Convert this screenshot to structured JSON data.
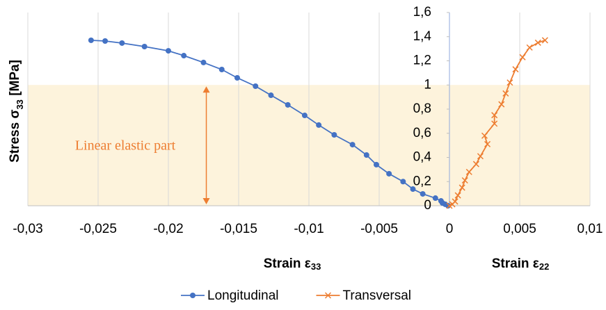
{
  "chart_data": {
    "type": "line",
    "y_label": [
      "Stress σ",
      "33",
      " [MPa]"
    ],
    "x_label_left": [
      "Strain ε",
      "33"
    ],
    "x_label_right": [
      "Strain ε",
      "22"
    ],
    "annotation": {
      "text": "Linear elastic part",
      "y_range": [
        0,
        1
      ],
      "color": "#ed7d31"
    },
    "highlight_color": "#fdf3dc",
    "xlim": [
      -0.03,
      0.01
    ],
    "ylim": [
      0,
      1.6
    ],
    "xticks": [
      {
        "value": -0.03,
        "label": "-0,03"
      },
      {
        "value": -0.025,
        "label": "-0,025"
      },
      {
        "value": -0.02,
        "label": "-0,02"
      },
      {
        "value": -0.015,
        "label": "-0,015"
      },
      {
        "value": -0.01,
        "label": "-0,01"
      },
      {
        "value": -0.005,
        "label": "-0,005"
      },
      0,
      {
        "value": 0.005,
        "label": "0,005"
      },
      {
        "value": 0.01,
        "label": "0,01"
      }
    ],
    "yticks": [
      0,
      {
        "value": 0.2,
        "label": "0,2"
      },
      {
        "value": 0.4,
        "label": "0,4"
      },
      {
        "value": 0.6,
        "label": "0,6"
      },
      {
        "value": 0.8,
        "label": "0,8"
      },
      1,
      {
        "value": 1.2,
        "label": "1,2"
      },
      {
        "value": 1.4,
        "label": "1,4"
      },
      {
        "value": 1.6,
        "label": "1,6"
      }
    ],
    "grid": true,
    "legend_position": "bottom",
    "series": [
      {
        "name": "Longitudinal",
        "color": "#4472c4",
        "marker": "circle",
        "x": [
          -0.0255,
          -0.0245,
          -0.0233,
          -0.0217,
          -0.02,
          -0.0189,
          -0.0175,
          -0.0162,
          -0.0151,
          -0.0138,
          -0.0127,
          -0.0115,
          -0.0103,
          -0.0093,
          -0.0082,
          -0.0069,
          -0.0059,
          -0.0052,
          -0.0043,
          -0.0033,
          -0.0026,
          -0.0019,
          -0.001,
          -0.0006,
          -0.0005,
          -0.0003,
          -0.0001
        ],
        "values": [
          1.37,
          1.364,
          1.347,
          1.318,
          1.283,
          1.243,
          1.186,
          1.128,
          1.059,
          0.99,
          0.915,
          0.835,
          0.748,
          0.668,
          0.587,
          0.506,
          0.42,
          0.34,
          0.265,
          0.2,
          0.138,
          0.098,
          0.063,
          0.04,
          0.023,
          0.012,
          0
        ]
      },
      {
        "name": "Transversal",
        "color": "#ed7d31",
        "marker": "x",
        "x": [
          0,
          0.0002,
          0.0004,
          0.0006,
          0.0009,
          0.0011,
          0.0014,
          0.0019,
          0.0022,
          0.0027,
          0.0025,
          0.0032,
          0.0032,
          0.0037,
          0.004,
          0.0043,
          0.0047,
          0.0052,
          0.0057,
          0.0063,
          0.0068
        ],
        "values": [
          0,
          0.012,
          0.035,
          0.086,
          0.15,
          0.21,
          0.28,
          0.345,
          0.41,
          0.51,
          0.58,
          0.68,
          0.75,
          0.84,
          0.93,
          1.02,
          1.13,
          1.23,
          1.31,
          1.35,
          1.37
        ]
      }
    ]
  }
}
